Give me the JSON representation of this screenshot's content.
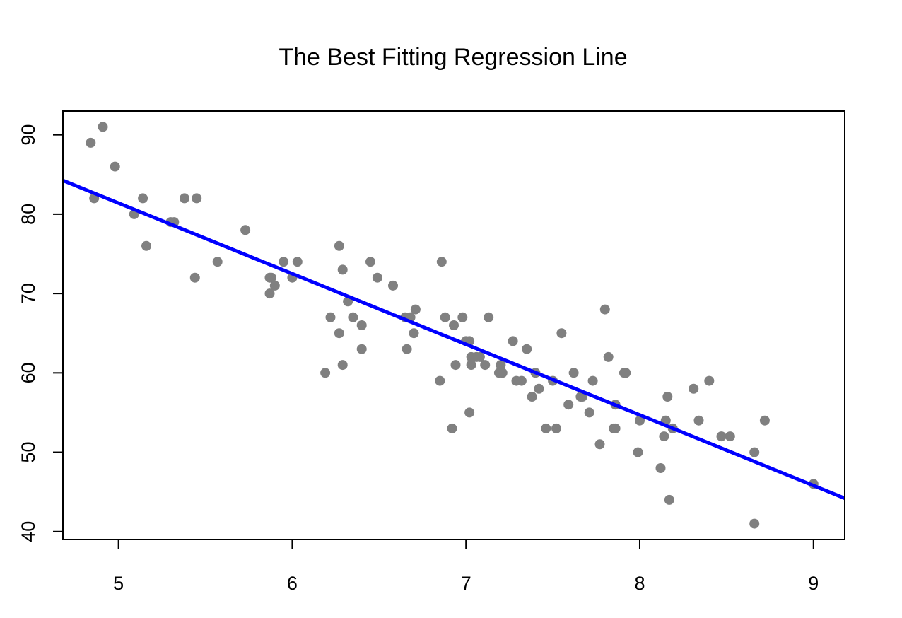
{
  "chart_data": {
    "type": "scatter",
    "title": "The Best Fitting Regression Line",
    "xlabel": "",
    "ylabel": "",
    "xlim": [
      4.68,
      9.18
    ],
    "ylim": [
      39,
      93
    ],
    "x_ticks": [
      5,
      6,
      7,
      8,
      9
    ],
    "y_ticks": [
      40,
      50,
      60,
      70,
      80,
      90
    ],
    "grid": false,
    "legend": "none",
    "point_color": "#808080",
    "line_color": "#0000ff",
    "regression_line": {
      "intercept": 125.9,
      "slope": -8.9
    },
    "points": [
      [
        4.84,
        89
      ],
      [
        4.86,
        82
      ],
      [
        4.91,
        91
      ],
      [
        4.98,
        86
      ],
      [
        5.09,
        80
      ],
      [
        5.14,
        82
      ],
      [
        5.16,
        76
      ],
      [
        5.3,
        79
      ],
      [
        5.32,
        79
      ],
      [
        5.38,
        82
      ],
      [
        5.44,
        72
      ],
      [
        5.45,
        82
      ],
      [
        5.57,
        74
      ],
      [
        5.73,
        78
      ],
      [
        5.87,
        70
      ],
      [
        5.87,
        72
      ],
      [
        5.88,
        72
      ],
      [
        5.9,
        71
      ],
      [
        5.95,
        74
      ],
      [
        6.0,
        72
      ],
      [
        6.03,
        74
      ],
      [
        6.19,
        60
      ],
      [
        6.22,
        67
      ],
      [
        6.27,
        65
      ],
      [
        6.27,
        76
      ],
      [
        6.29,
        61
      ],
      [
        6.29,
        73
      ],
      [
        6.32,
        69
      ],
      [
        6.35,
        67
      ],
      [
        6.4,
        66
      ],
      [
        6.4,
        63
      ],
      [
        6.45,
        74
      ],
      [
        6.49,
        72
      ],
      [
        6.58,
        71
      ],
      [
        6.65,
        67
      ],
      [
        6.66,
        63
      ],
      [
        6.68,
        67
      ],
      [
        6.7,
        65
      ],
      [
        6.71,
        68
      ],
      [
        6.85,
        59
      ],
      [
        6.86,
        74
      ],
      [
        6.88,
        67
      ],
      [
        6.92,
        53
      ],
      [
        6.93,
        66
      ],
      [
        6.94,
        61
      ],
      [
        6.98,
        67
      ],
      [
        7.0,
        64
      ],
      [
        7.02,
        64
      ],
      [
        7.02,
        55
      ],
      [
        7.03,
        62
      ],
      [
        7.03,
        61
      ],
      [
        7.06,
        62
      ],
      [
        7.08,
        62
      ],
      [
        7.11,
        61
      ],
      [
        7.13,
        67
      ],
      [
        7.19,
        60
      ],
      [
        7.2,
        61
      ],
      [
        7.21,
        60
      ],
      [
        7.27,
        64
      ],
      [
        7.29,
        59
      ],
      [
        7.32,
        59
      ],
      [
        7.35,
        63
      ],
      [
        7.38,
        57
      ],
      [
        7.4,
        60
      ],
      [
        7.42,
        58
      ],
      [
        7.46,
        53
      ],
      [
        7.5,
        59
      ],
      [
        7.52,
        53
      ],
      [
        7.55,
        65
      ],
      [
        7.59,
        56
      ],
      [
        7.62,
        60
      ],
      [
        7.66,
        57
      ],
      [
        7.67,
        57
      ],
      [
        7.71,
        55
      ],
      [
        7.73,
        59
      ],
      [
        7.77,
        51
      ],
      [
        7.8,
        68
      ],
      [
        7.82,
        62
      ],
      [
        7.85,
        53
      ],
      [
        7.86,
        53
      ],
      [
        7.86,
        56
      ],
      [
        7.91,
        60
      ],
      [
        7.92,
        60
      ],
      [
        7.99,
        50
      ],
      [
        8.0,
        54
      ],
      [
        8.12,
        48
      ],
      [
        8.14,
        52
      ],
      [
        8.15,
        54
      ],
      [
        8.16,
        57
      ],
      [
        8.17,
        44
      ],
      [
        8.19,
        53
      ],
      [
        8.31,
        58
      ],
      [
        8.34,
        54
      ],
      [
        8.4,
        59
      ],
      [
        8.47,
        52
      ],
      [
        8.52,
        52
      ],
      [
        8.66,
        50
      ],
      [
        8.66,
        41
      ],
      [
        8.72,
        54
      ],
      [
        9.0,
        46
      ]
    ]
  }
}
